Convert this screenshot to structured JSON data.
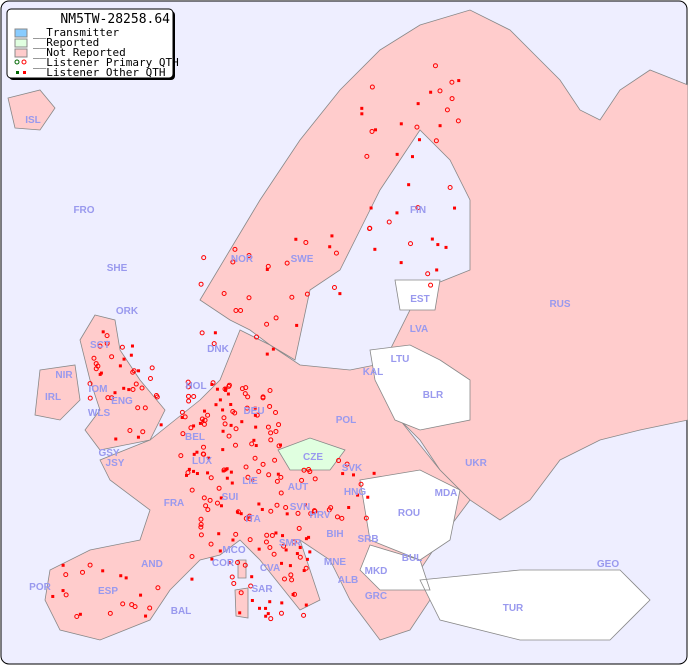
{
  "title": "NM5TW-28258.64",
  "legend": [
    {
      "label": "__Transmitter",
      "color": "#88ccff"
    },
    {
      "label": "__Reported",
      "color": "#e0ffe0"
    },
    {
      "label": "__Not Reported",
      "color": "#ffcccc"
    },
    {
      "label": "__Listener Primary QTH",
      "marker": "open-circle"
    },
    {
      "label": "__Listener Other QTH",
      "marker": "filled-square"
    }
  ],
  "colors": {
    "sea": "#eeeeff",
    "not_reported": "#ffcccc",
    "reported": "#e0ffe0",
    "no_data": "#ffffff",
    "marker": "#ff0000",
    "label": "#9999ee"
  },
  "countries": {
    "ISL": "ISL",
    "FRO": "FRO",
    "SHE": "SHE",
    "ORK": "ORK",
    "NOR": "NOR",
    "SWE": "SWE",
    "FIN": "FIN",
    "EST": "EST",
    "RUS": "RUS",
    "LVA": "LVA",
    "LTU": "LTU",
    "KAL": "KAL",
    "BLR": "BLR",
    "DNK": "DNK",
    "HOL": "HOL",
    "IRL": "IRL",
    "NIR": "NIR",
    "SCT": "SCT",
    "IOM": "IOM",
    "WLS": "WLS",
    "ENG": "ENG",
    "GSY": "GSY",
    "JSY": "JSY",
    "BEL": "BEL",
    "LUX": "LUX",
    "DEU": "DEU",
    "POL": "POL",
    "CZE": "CZE",
    "SVK": "SVK",
    "UKR": "UKR",
    "MDA": "MDA",
    "FRA": "FRA",
    "SUI": "SUI",
    "LIE": "LIE",
    "AUT": "AUT",
    "HNG": "HNG",
    "ROU": "ROU",
    "SVN": "SVN",
    "HRV": "HRV",
    "BIH": "BIH",
    "SRB": "SRB",
    "ITA": "ITA",
    "MCO": "MCO",
    "COR": "COR",
    "SMR": "SMR",
    "CVA": "CVA",
    "MNE": "MNE",
    "ALB": "ALB",
    "MKD": "MKD",
    "BUL": "BUL",
    "GRC": "GRC",
    "TUR": "TUR",
    "GEO": "GEO",
    "AND": "AND",
    "POR": "POR",
    "ESP": "ESP",
    "BAL": "BAL",
    "SAR": "SAR"
  }
}
